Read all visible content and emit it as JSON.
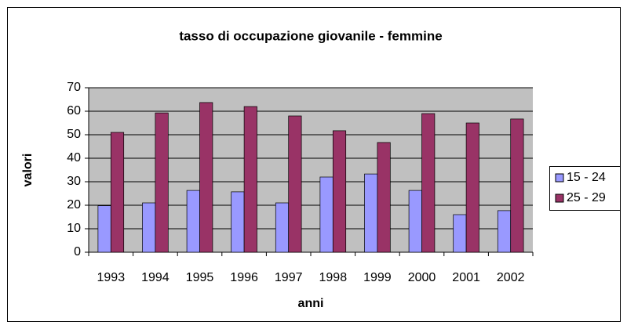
{
  "chart_data": {
    "type": "bar",
    "title": "tasso di occupazione giovanile - femmine",
    "x_label": "anni",
    "y_label": "valori",
    "categories": [
      "1993",
      "1994",
      "1995",
      "1996",
      "1997",
      "1998",
      "1999",
      "2000",
      "2001",
      "2002"
    ],
    "series": [
      {
        "name": "15 - 24",
        "color": "#9999ff",
        "values": [
          19.8,
          21,
          26.3,
          25.7,
          21,
          32,
          33.3,
          26.3,
          16,
          17.7
        ]
      },
      {
        "name": "25 - 29",
        "color": "#993366",
        "values": [
          51,
          59.3,
          63.7,
          62,
          58,
          51.7,
          46.7,
          59,
          55,
          56.7
        ]
      }
    ],
    "ylim": [
      0,
      70
    ],
    "yticks": [
      0,
      10,
      20,
      30,
      40,
      50,
      60,
      70
    ],
    "grid": true,
    "legend": "right"
  }
}
